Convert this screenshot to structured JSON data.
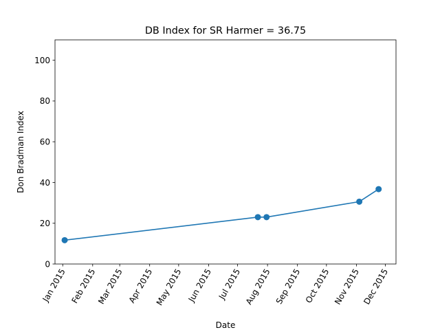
{
  "chart_data": {
    "type": "line",
    "title": "DB Index for SR Harmer = 36.75",
    "xlabel": "Date",
    "ylabel": "Don Bradman Index",
    "ylim": [
      0,
      110
    ],
    "xlim": [
      "2014-12-24",
      "2015-12-12"
    ],
    "grid": false,
    "x_ticks": [
      "2015-01-01",
      "2015-02-01",
      "2015-03-01",
      "2015-04-01",
      "2015-05-01",
      "2015-06-01",
      "2015-07-01",
      "2015-08-01",
      "2015-09-01",
      "2015-10-01",
      "2015-11-01",
      "2015-12-01"
    ],
    "x_tick_labels": [
      "Jan 2015",
      "Feb 2015",
      "Mar 2015",
      "Apr 2015",
      "May 2015",
      "Jun 2015",
      "Jul 2015",
      "Aug 2015",
      "Sep 2015",
      "Oct 2015",
      "Nov 2015",
      "Dec 2015"
    ],
    "y_ticks": [
      0,
      20,
      40,
      60,
      80,
      100
    ],
    "y_tick_labels": [
      "0",
      "20",
      "40",
      "60",
      "80",
      "100"
    ],
    "series": [
      {
        "color": "#1f77b4",
        "points": [
          {
            "x": "2015-01-03",
            "y": 11.7
          },
          {
            "x": "2015-07-22",
            "y": 23.0
          },
          {
            "x": "2015-07-31",
            "y": 23.0
          },
          {
            "x": "2015-11-04",
            "y": 30.6
          },
          {
            "x": "2015-11-24",
            "y": 36.75
          }
        ]
      }
    ]
  }
}
